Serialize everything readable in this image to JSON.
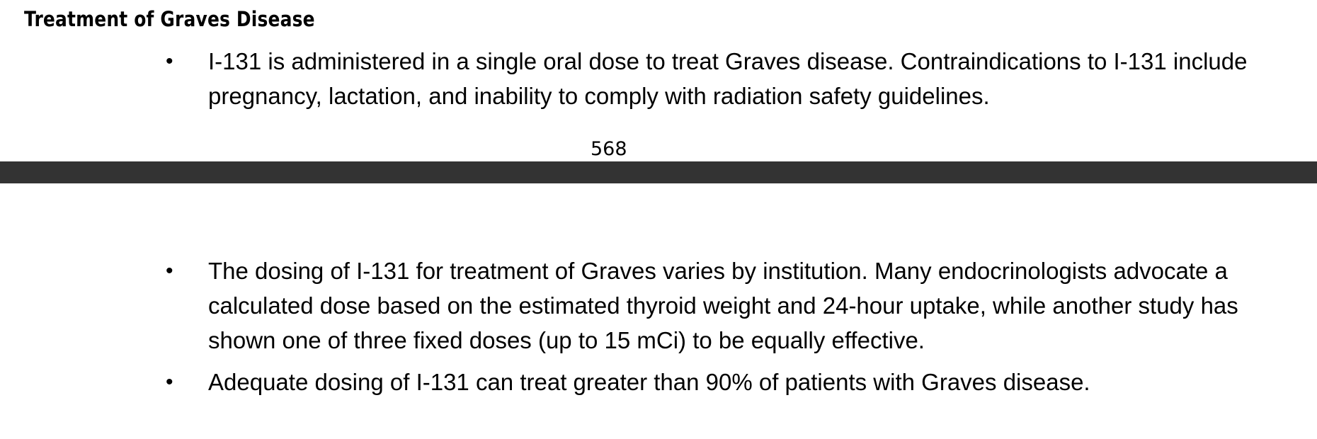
{
  "document": {
    "section_heading": "Treatment of Graves Disease",
    "page_number": "568",
    "page_top_bullets": [
      "I-131 is administered in a single oral dose to treat Graves disease. Contraindications to I-131 include pregnancy, lactation, and inability to comply with radiation safety guidelines."
    ],
    "page_bottom_bullets": [
      "The dosing of I-131 for treatment of Graves varies by institution. Many endocrinologists advocate a calculated dose based on the estimated thyroid weight and 24-hour uptake, while another study has shown one of three fixed doses (up to 15 mCi) to be equally effective.",
      "Adequate dosing of I-131 can treat greater than 90% of patients with Graves disease."
    ],
    "bullet_symbol": "•"
  },
  "colors": {
    "page_background": "#ffffff",
    "text": "#000000",
    "page_separator": "#333333"
  }
}
